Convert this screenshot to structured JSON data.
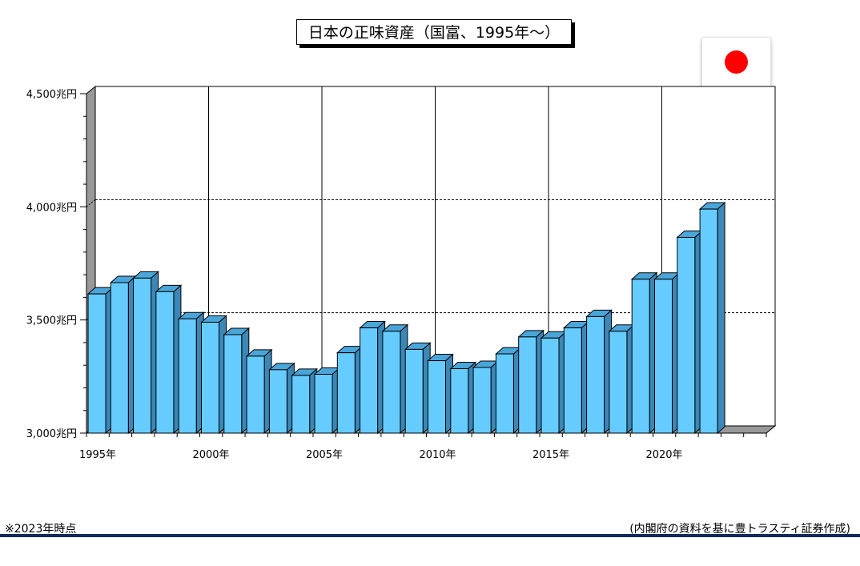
{
  "title": "日本の正味資産（国富、1995年～）",
  "footnote": "※2023年時点",
  "source": "(内閣府の資料を基に豊トラスティ証券作成)",
  "flag_icon": "japan-flag-icon",
  "colors": {
    "bar_front": "#66ccff",
    "bar_top": "#4aa6d9",
    "bar_side": "#3a87b8",
    "wall": "#999999",
    "footer_rule": "#102a5c",
    "flag_red": "#ff0000"
  },
  "chart_data": {
    "type": "bar",
    "title": "日本の正味資産（国富、1995年～）",
    "xlabel": "",
    "ylabel": "",
    "ylim": [
      3000,
      4500
    ],
    "grid": true,
    "yticks": [
      3000,
      3500,
      4000,
      4500
    ],
    "ytick_labels": [
      "3,000兆円",
      "3,500兆円",
      "4,000兆円",
      "4,500兆円"
    ],
    "xtick_labels": [
      "1995年",
      "2000年",
      "2005年",
      "2010年",
      "2015年",
      "2020年"
    ],
    "categories": [
      "1995",
      "1996",
      "1997",
      "1998",
      "1999",
      "2000",
      "2001",
      "2002",
      "2003",
      "2004",
      "2005",
      "2006",
      "2007",
      "2008",
      "2009",
      "2010",
      "2011",
      "2012",
      "2013",
      "2014",
      "2015",
      "2016",
      "2017",
      "2018",
      "2019",
      "2020",
      "2021",
      "2022",
      "2023",
      "2024"
    ],
    "values": [
      3615,
      3665,
      3685,
      3625,
      3505,
      3490,
      3435,
      3340,
      3280,
      3255,
      3260,
      3355,
      3465,
      3450,
      3370,
      3320,
      3285,
      3290,
      3350,
      3425,
      3420,
      3465,
      3515,
      3450,
      3680,
      3680,
      3865,
      3990,
      null,
      null
    ]
  }
}
